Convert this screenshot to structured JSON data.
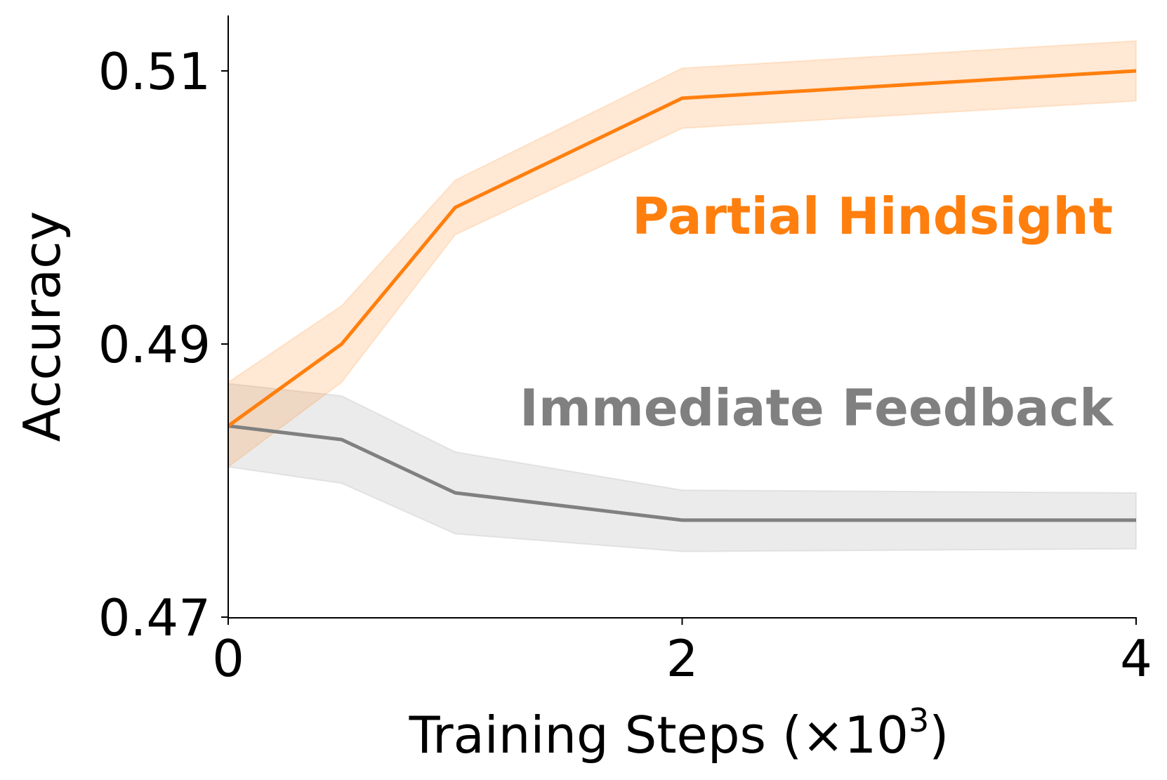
{
  "chart_data": {
    "type": "line",
    "title": "",
    "xlabel": "Training Steps (×10",
    "xlabel_exponent": "3",
    "xlabel_close": ")",
    "ylabel": "Accuracy",
    "xlim": [
      0,
      4
    ],
    "ylim": [
      0.47,
      0.5143
    ],
    "xticks": [
      0,
      2,
      4
    ],
    "xtick_labels": [
      "0",
      "2",
      "4"
    ],
    "yticks": [
      0.47,
      0.49,
      0.51
    ],
    "ytick_labels": [
      "0.47",
      "0.49",
      "0.51"
    ],
    "grid": false,
    "legend": "none (inline labels)",
    "x": [
      0,
      0.5,
      1,
      2,
      4
    ],
    "series": [
      {
        "name": "Partial Hindsight",
        "color": "#ff7f0e",
        "values": [
          0.484,
          0.49,
          0.5,
          0.508,
          0.51
        ],
        "lower": [
          0.481,
          0.4872,
          0.498,
          0.5058,
          0.5078
        ],
        "upper": [
          0.4872,
          0.4928,
          0.502,
          0.5102,
          0.5122
        ]
      },
      {
        "name": "Immediate Feedback",
        "color": "#808080",
        "values": [
          0.484,
          0.483,
          0.4791,
          0.4771,
          0.4771
        ],
        "lower": [
          0.481,
          0.4798,
          0.4761,
          0.4748,
          0.475
        ],
        "upper": [
          0.4871,
          0.4862,
          0.4821,
          0.4793,
          0.4791
        ]
      }
    ]
  }
}
